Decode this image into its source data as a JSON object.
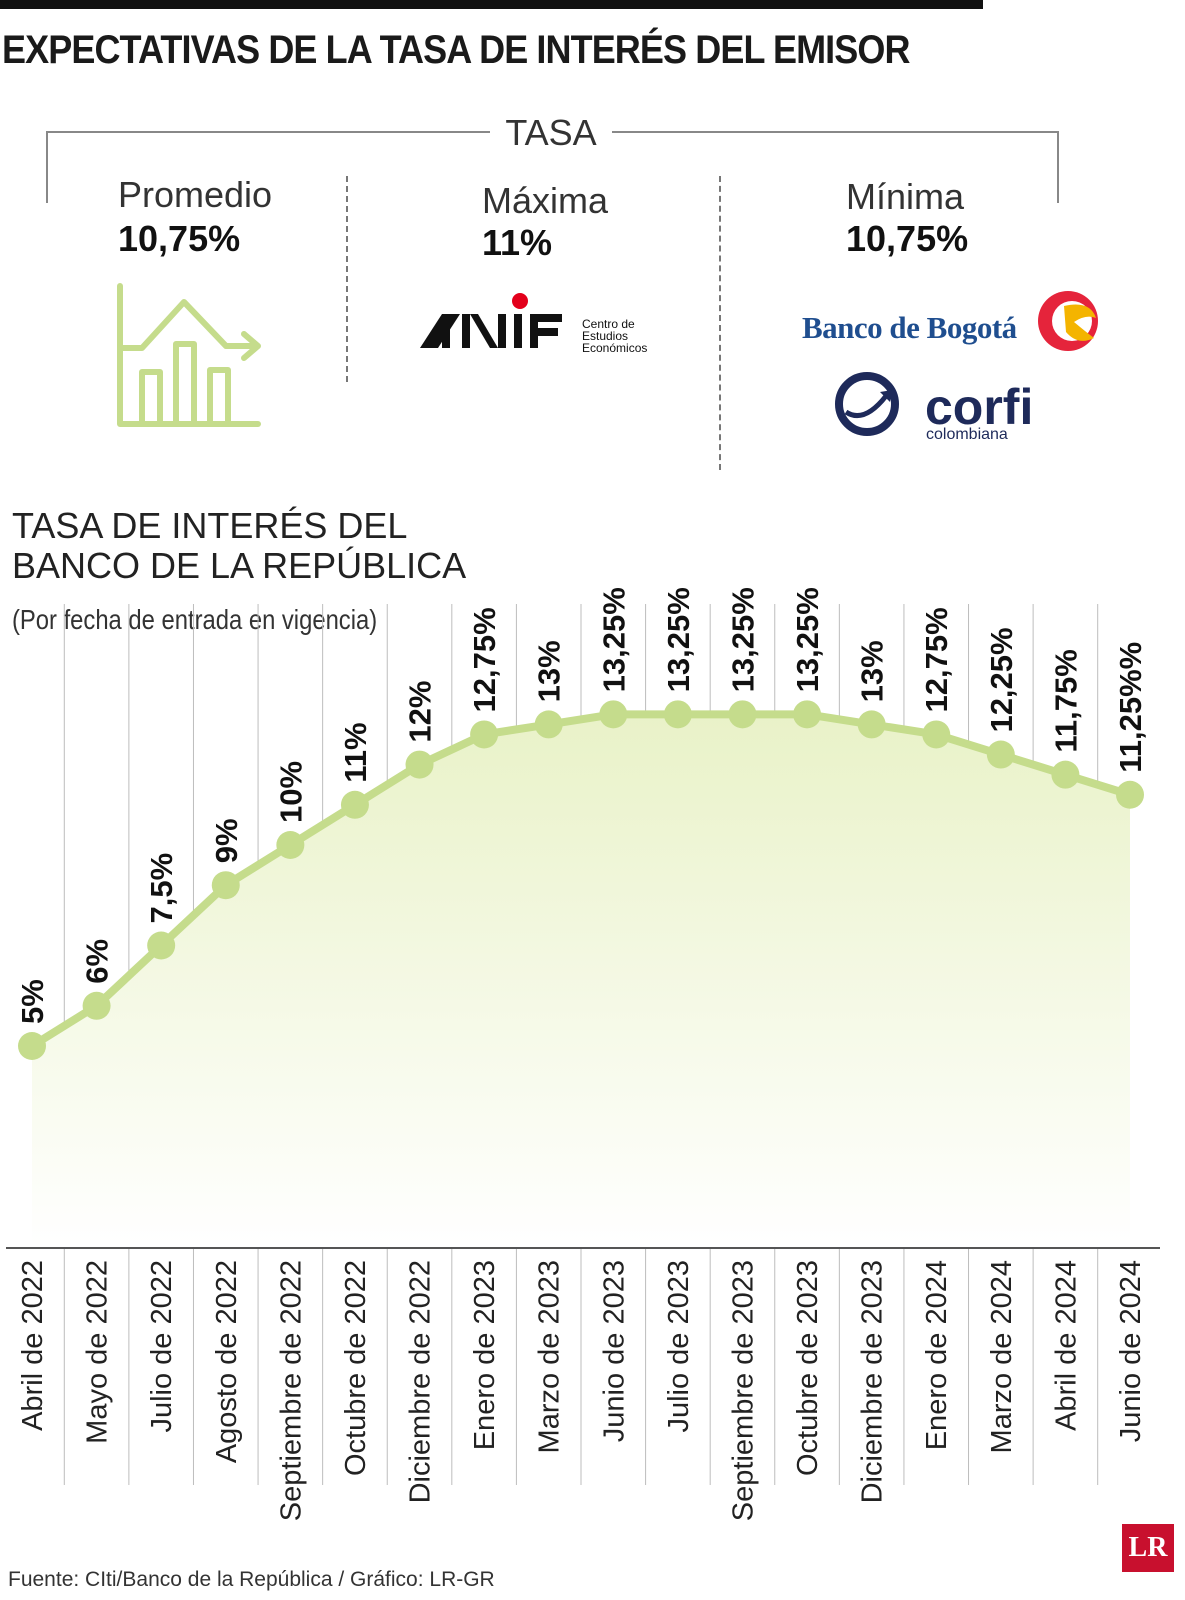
{
  "header": {
    "title": "EXPECTATIVAS DE LA TASA DE INTERÉS DEL EMISOR",
    "tasa_label": "TASA"
  },
  "expectations": {
    "promedio": {
      "label": "Promedio",
      "value": "10,75%"
    },
    "maxima": {
      "label": "Máxima",
      "value": "11%",
      "source_logo": "ANIF",
      "source_sub": [
        "Centro de",
        "Estudios",
        "Económicos"
      ]
    },
    "minima": {
      "label": "Mínima",
      "value": "10,75%",
      "source_logos": [
        "Banco de Bogotá",
        "corfi",
        "colombiana"
      ]
    }
  },
  "chart_data": {
    "type": "area",
    "title_lines": [
      "TASA DE INTERÉS DEL",
      "BANCO DE LA REPÚBLICA"
    ],
    "subtitle": "(Por fecha de entrada en vigencia)",
    "categories": [
      "Abril de 2022",
      "Mayo de 2022",
      "Julio de 2022",
      "Agosto de 2022",
      "Septiembre de 2022",
      "Octubre de 2022",
      "Diciembre de 2022",
      "Enero de 2023",
      "Marzo de 2023",
      "Junio de 2023",
      "Julio de 2023",
      "Septiembre de 2023",
      "Octubre de 2023",
      "Diciembre de 2023",
      "Enero de 2024",
      "Marzo de 2024",
      "Abril de 2024",
      "Junio de 2024"
    ],
    "values": [
      5,
      6,
      7.5,
      9,
      10,
      11,
      12,
      12.75,
      13,
      13.25,
      13.25,
      13.25,
      13.25,
      13,
      12.75,
      12.25,
      11.75,
      11.25
    ],
    "labels": [
      "5%",
      "6%",
      "7,5%",
      "9%",
      "10%",
      "11%",
      "12%",
      "12,75%",
      "13%",
      "13,25%",
      "13,25%",
      "13,25%",
      "13,25%",
      "13%",
      "12,75%",
      "12,25%",
      "11,75%",
      "11,25%%"
    ],
    "line_color": "#c5dc8c",
    "fill_color": "#eef5d6"
  },
  "footer": {
    "source": "Fuente: CIti/Banco de la República / Gráfico: LR-GR",
    "badge": "LR"
  },
  "colors": {
    "icon_green": "#c5dc8c",
    "anif_red": "#e3001b",
    "bogota_blue": "#1f4e8f",
    "bogota_red": "#e5243b",
    "bogota_yellow": "#f4b400",
    "corfi_navy": "#1e2a5a"
  }
}
